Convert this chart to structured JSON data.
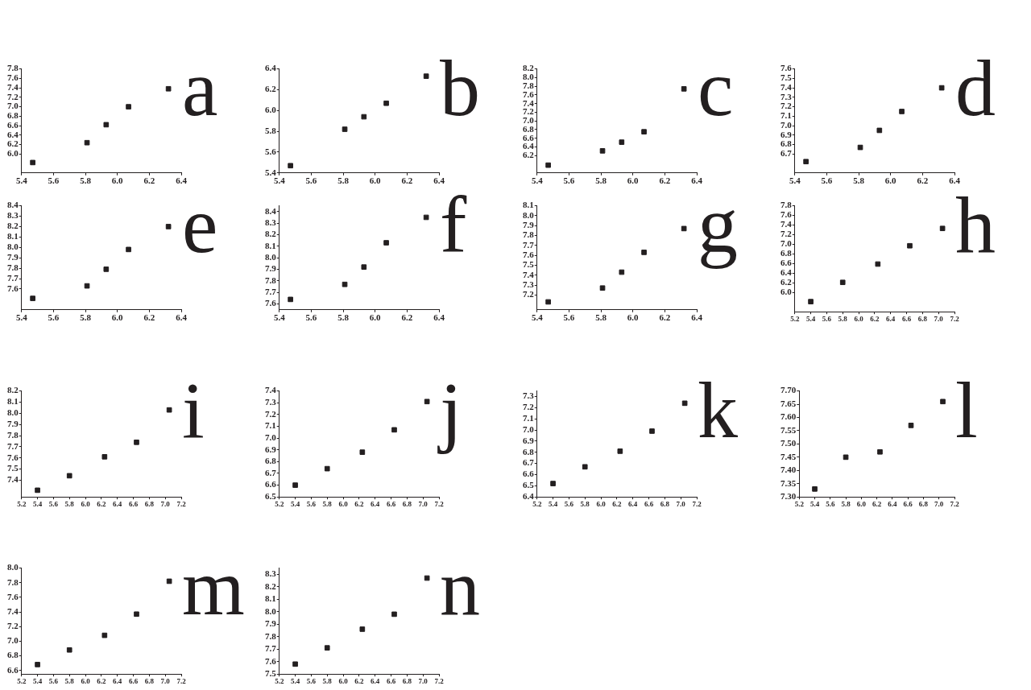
{
  "chart_data": [
    {
      "type": "scatter",
      "title": "a",
      "x": [
        5.47,
        5.81,
        5.93,
        6.07,
        6.32
      ],
      "values": [
        5.82,
        6.24,
        6.62,
        7.0,
        7.38
      ],
      "color": "#231f20",
      "marker": "square",
      "grid": false,
      "xlim": [
        5.4,
        6.4
      ],
      "xticks": [
        {
          "value": 5.4,
          "label": "5.4"
        },
        {
          "value": 5.6,
          "label": "5.6"
        },
        {
          "value": 5.8,
          "label": "5.8"
        },
        {
          "value": 6.0,
          "label": "6.0"
        },
        {
          "value": 6.2,
          "label": "6.2"
        },
        {
          "value": 6.4,
          "label": "6.4"
        }
      ],
      "ylim": [
        5.6,
        7.8
      ],
      "yticks": [
        {
          "value": 6.0,
          "label": "6.0"
        },
        {
          "value": 6.2,
          "label": "6.2"
        },
        {
          "value": 6.4,
          "label": "6.4"
        },
        {
          "value": 6.6,
          "label": "6.6"
        },
        {
          "value": 6.8,
          "label": "6.8"
        },
        {
          "value": 7.0,
          "label": "7.0"
        },
        {
          "value": 7.2,
          "label": "7.2"
        },
        {
          "value": 7.4,
          "label": "7.4"
        },
        {
          "value": 7.6,
          "label": "7.6"
        },
        {
          "value": 7.8,
          "label": "7.8"
        }
      ]
    },
    {
      "type": "scatter",
      "title": "b",
      "x": [
        5.47,
        5.81,
        5.93,
        6.07,
        6.32
      ],
      "values": [
        5.47,
        5.82,
        5.94,
        6.07,
        6.33
      ],
      "color": "#231f20",
      "marker": "square",
      "grid": false,
      "xlim": [
        5.4,
        6.4
      ],
      "xticks": [
        {
          "value": 5.4,
          "label": "5.4"
        },
        {
          "value": 5.6,
          "label": "5.6"
        },
        {
          "value": 5.8,
          "label": "5.8"
        },
        {
          "value": 6.0,
          "label": "6.0"
        },
        {
          "value": 6.2,
          "label": "6.2"
        },
        {
          "value": 6.4,
          "label": "6.4"
        }
      ],
      "ylim": [
        5.4,
        6.4
      ],
      "yticks": [
        {
          "value": 5.4,
          "label": "5.4"
        },
        {
          "value": 5.6,
          "label": "5.6"
        },
        {
          "value": 5.8,
          "label": "5.8"
        },
        {
          "value": 6.0,
          "label": "6.0"
        },
        {
          "value": 6.2,
          "label": "6.2"
        },
        {
          "value": 6.4,
          "label": "6.4"
        }
      ]
    },
    {
      "type": "scatter",
      "title": "c",
      "x": [
        5.47,
        5.81,
        5.93,
        6.07,
        6.32
      ],
      "values": [
        5.98,
        6.31,
        6.51,
        6.75,
        7.74
      ],
      "color": "#231f20",
      "marker": "square",
      "grid": false,
      "xlim": [
        5.4,
        6.4
      ],
      "xticks": [
        {
          "value": 5.4,
          "label": "5.4"
        },
        {
          "value": 5.6,
          "label": "5.6"
        },
        {
          "value": 5.8,
          "label": "5.8"
        },
        {
          "value": 6.0,
          "label": "6.0"
        },
        {
          "value": 6.2,
          "label": "6.2"
        },
        {
          "value": 6.4,
          "label": "6.4"
        }
      ],
      "ylim": [
        5.8,
        8.2
      ],
      "yticks": [
        {
          "value": 6.2,
          "label": "6.2"
        },
        {
          "value": 6.4,
          "label": "6.4"
        },
        {
          "value": 6.6,
          "label": "6.6"
        },
        {
          "value": 6.8,
          "label": "6.8"
        },
        {
          "value": 7.0,
          "label": "7.0"
        },
        {
          "value": 7.2,
          "label": "7.2"
        },
        {
          "value": 7.4,
          "label": "7.4"
        },
        {
          "value": 7.6,
          "label": "7.6"
        },
        {
          "value": 7.8,
          "label": "7.8"
        },
        {
          "value": 8.0,
          "label": "8.0"
        },
        {
          "value": 8.2,
          "label": "8.2"
        }
      ]
    },
    {
      "type": "scatter",
      "title": "d",
      "x": [
        5.47,
        5.81,
        5.93,
        6.07,
        6.32
      ],
      "values": [
        6.62,
        6.77,
        6.95,
        7.15,
        7.4
      ],
      "color": "#231f20",
      "marker": "square",
      "grid": false,
      "xlim": [
        5.4,
        6.4
      ],
      "xticks": [
        {
          "value": 5.4,
          "label": "5.4"
        },
        {
          "value": 5.6,
          "label": "5.6"
        },
        {
          "value": 5.8,
          "label": "5.8"
        },
        {
          "value": 6.0,
          "label": "6.0"
        },
        {
          "value": 6.2,
          "label": "6.2"
        },
        {
          "value": 6.4,
          "label": "6.4"
        }
      ],
      "ylim": [
        6.5,
        7.6
      ],
      "yticks": [
        6.7,
        6.8,
        6.9,
        {
          "value": 7.0,
          "label": "7.0"
        },
        7.1,
        7.2,
        7.3,
        7.4,
        7.5,
        7.6
      ]
    },
    {
      "type": "scatter",
      "title": "e",
      "x": [
        5.47,
        5.81,
        5.93,
        6.07,
        6.32
      ],
      "values": [
        7.51,
        7.63,
        7.79,
        7.98,
        8.2
      ],
      "color": "#231f20",
      "marker": "square",
      "grid": false,
      "xlim": [
        5.4,
        6.4
      ],
      "xticks": [
        {
          "value": 5.4,
          "label": "5.4"
        },
        {
          "value": 5.6,
          "label": "5.6"
        },
        {
          "value": 5.8,
          "label": "5.8"
        },
        {
          "value": 6.0,
          "label": "6.0"
        },
        {
          "value": 6.2,
          "label": "6.2"
        },
        {
          "value": 6.4,
          "label": "6.4"
        }
      ],
      "ylim": [
        7.4,
        8.4
      ],
      "yticks": [
        7.6,
        7.7,
        7.8,
        7.9,
        {
          "value": 8.0,
          "label": "8.0"
        },
        8.1,
        8.2,
        8.3,
        8.4
      ]
    },
    {
      "type": "scatter",
      "title": "f",
      "x": [
        5.47,
        5.81,
        5.93,
        6.07,
        6.32
      ],
      "values": [
        7.64,
        7.77,
        7.92,
        8.13,
        8.35
      ],
      "color": "#231f20",
      "marker": "square",
      "grid": false,
      "xlim": [
        5.4,
        6.4
      ],
      "xticks": [
        {
          "value": 5.4,
          "label": "5.4"
        },
        {
          "value": 5.6,
          "label": "5.6"
        },
        {
          "value": 5.8,
          "label": "5.8"
        },
        {
          "value": 6.0,
          "label": "6.0"
        },
        {
          "value": 6.2,
          "label": "6.2"
        },
        {
          "value": 6.4,
          "label": "6.4"
        }
      ],
      "ylim": [
        7.55,
        8.45
      ],
      "yticks": [
        7.6,
        7.7,
        7.8,
        7.9,
        {
          "value": 8.0,
          "label": "8.0"
        },
        8.1,
        8.2,
        8.3,
        8.4
      ]
    },
    {
      "type": "scatter",
      "title": "g",
      "x": [
        5.47,
        5.81,
        5.93,
        6.07,
        6.32
      ],
      "values": [
        7.13,
        7.27,
        7.43,
        7.63,
        7.87
      ],
      "color": "#231f20",
      "marker": "square",
      "grid": false,
      "xlim": [
        5.4,
        6.4
      ],
      "xticks": [
        {
          "value": 5.4,
          "label": "5.4"
        },
        {
          "value": 5.6,
          "label": "5.6"
        },
        {
          "value": 5.8,
          "label": "5.8"
        },
        {
          "value": 6.0,
          "label": "6.0"
        },
        {
          "value": 6.2,
          "label": "6.2"
        },
        {
          "value": 6.4,
          "label": "6.4"
        }
      ],
      "ylim": [
        7.05,
        8.1
      ],
      "yticks": [
        7.2,
        7.3,
        7.4,
        7.5,
        7.6,
        7.7,
        7.8,
        7.9,
        {
          "value": 8.0,
          "label": "8.0"
        },
        8.1
      ]
    },
    {
      "type": "scatter",
      "title": "h",
      "x": [
        5.4,
        5.8,
        6.24,
        6.64,
        7.05
      ],
      "values": [
        5.81,
        6.21,
        6.59,
        6.97,
        7.33
      ],
      "color": "#231f20",
      "marker": "square",
      "grid": false,
      "xlim": [
        5.2,
        7.2
      ],
      "xticks": [
        5.2,
        5.4,
        5.6,
        5.8,
        {
          "value": 6.0,
          "label": "6.0"
        },
        6.2,
        6.4,
        6.6,
        6.8,
        {
          "value": 7.0,
          "label": "7.0"
        },
        7.2
      ],
      "ylim": [
        5.6,
        7.8
      ],
      "yticks": [
        {
          "value": 6.0,
          "label": "6.0"
        },
        6.2,
        6.4,
        6.6,
        6.8,
        {
          "value": 7.0,
          "label": "7.0"
        },
        7.2,
        7.4,
        7.6,
        7.8
      ]
    },
    {
      "type": "scatter",
      "title": "i",
      "x": [
        5.4,
        5.8,
        6.24,
        6.64,
        7.05
      ],
      "values": [
        7.31,
        7.44,
        7.61,
        7.74,
        8.03
      ],
      "color": "#231f20",
      "marker": "square",
      "grid": false,
      "xlim": [
        5.2,
        7.2
      ],
      "xticks": [
        5.2,
        5.4,
        5.6,
        5.8,
        {
          "value": 6.0,
          "label": "6.0"
        },
        6.2,
        6.4,
        6.6,
        6.8,
        {
          "value": 7.0,
          "label": "7.0"
        },
        7.2
      ],
      "ylim": [
        7.25,
        8.2
      ],
      "yticks": [
        7.4,
        7.5,
        7.6,
        7.7,
        7.8,
        7.9,
        {
          "value": 8.0,
          "label": "8.0"
        },
        8.1,
        8.2
      ]
    },
    {
      "type": "scatter",
      "title": "j",
      "x": [
        5.4,
        5.8,
        6.24,
        6.64,
        7.05
      ],
      "values": [
        6.6,
        6.74,
        6.88,
        7.07,
        7.31
      ],
      "color": "#231f20",
      "marker": "square",
      "grid": false,
      "xlim": [
        5.2,
        7.2
      ],
      "xticks": [
        5.2,
        5.4,
        5.6,
        5.8,
        {
          "value": 6.0,
          "label": "6.0"
        },
        6.2,
        6.4,
        6.6,
        6.8,
        {
          "value": 7.0,
          "label": "7.0"
        },
        7.2
      ],
      "ylim": [
        6.5,
        7.4
      ],
      "yticks": [
        6.5,
        6.6,
        6.7,
        6.8,
        6.9,
        {
          "value": 7.0,
          "label": "7.0"
        },
        7.1,
        7.2,
        7.3,
        7.4
      ]
    },
    {
      "type": "scatter",
      "title": "k",
      "x": [
        5.4,
        5.8,
        6.24,
        6.64,
        7.05
      ],
      "values": [
        6.52,
        6.67,
        6.81,
        6.99,
        7.24
      ],
      "color": "#231f20",
      "marker": "square",
      "grid": false,
      "xlim": [
        5.2,
        7.2
      ],
      "xticks": [
        5.2,
        5.4,
        5.6,
        5.8,
        {
          "value": 6.0,
          "label": "6.0"
        },
        6.2,
        6.4,
        6.6,
        6.8,
        {
          "value": 7.0,
          "label": "7.0"
        },
        7.2
      ],
      "ylim": [
        6.4,
        7.35
      ],
      "yticks": [
        6.4,
        6.5,
        6.6,
        6.7,
        6.8,
        6.9,
        {
          "value": 7.0,
          "label": "7.0"
        },
        7.1,
        7.2,
        7.3
      ]
    },
    {
      "type": "scatter",
      "title": "l",
      "x": [
        5.4,
        5.8,
        6.24,
        6.64,
        7.05
      ],
      "values": [
        7.33,
        7.45,
        7.47,
        7.57,
        7.66
      ],
      "color": "#231f20",
      "marker": "square",
      "grid": false,
      "xlim": [
        5.2,
        7.2
      ],
      "xticks": [
        5.2,
        5.4,
        5.6,
        5.8,
        {
          "value": 6.0,
          "label": "6.0"
        },
        6.2,
        6.4,
        6.6,
        6.8,
        {
          "value": 7.0,
          "label": "7.0"
        },
        7.2
      ],
      "ylim": [
        7.3,
        7.7
      ],
      "yticks": [
        {
          "value": 7.3,
          "label": "7.30"
        },
        7.35,
        {
          "value": 7.4,
          "label": "7.40"
        },
        7.45,
        {
          "value": 7.5,
          "label": "7.50"
        },
        7.55,
        {
          "value": 7.6,
          "label": "7.60"
        },
        7.65,
        {
          "value": 7.7,
          "label": "7.70"
        }
      ]
    },
    {
      "type": "scatter",
      "title": "m",
      "x": [
        5.4,
        5.8,
        6.24,
        6.64,
        7.05
      ],
      "values": [
        6.68,
        6.88,
        7.08,
        7.37,
        7.82
      ],
      "color": "#231f20",
      "marker": "square",
      "grid": false,
      "xlim": [
        5.2,
        7.2
      ],
      "xticks": [
        5.2,
        5.4,
        5.6,
        5.8,
        {
          "value": 6.0,
          "label": "6.0"
        },
        6.2,
        6.4,
        6.6,
        6.8,
        {
          "value": 7.0,
          "label": "7.0"
        },
        7.2
      ],
      "ylim": [
        6.55,
        8.0
      ],
      "yticks": [
        6.6,
        6.8,
        {
          "value": 7.0,
          "label": "7.0"
        },
        7.2,
        7.4,
        7.6,
        7.8,
        {
          "value": 8.0,
          "label": "8.0"
        }
      ]
    },
    {
      "type": "scatter",
      "title": "n",
      "x": [
        5.4,
        5.8,
        6.24,
        6.64,
        7.05
      ],
      "values": [
        7.58,
        7.71,
        7.86,
        7.98,
        8.27
      ],
      "color": "#231f20",
      "marker": "square",
      "grid": false,
      "xlim": [
        5.2,
        7.2
      ],
      "xticks": [
        5.2,
        5.4,
        5.6,
        5.8,
        {
          "value": 6.0,
          "label": "6.0"
        },
        6.2,
        6.4,
        6.6,
        6.8,
        {
          "value": 7.0,
          "label": "7.0"
        },
        7.2
      ],
      "ylim": [
        7.5,
        8.35
      ],
      "yticks": [
        7.5,
        7.6,
        7.7,
        7.8,
        7.9,
        {
          "value": 8.0,
          "label": "8.0"
        },
        8.1,
        8.2,
        8.3
      ]
    }
  ]
}
